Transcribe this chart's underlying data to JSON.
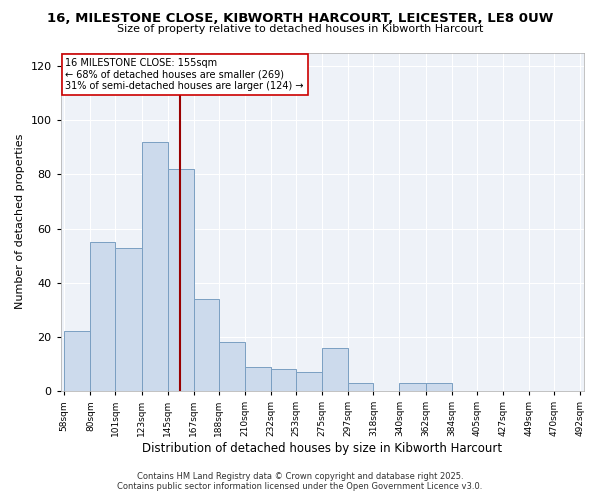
{
  "title": "16, MILESTONE CLOSE, KIBWORTH HARCOURT, LEICESTER, LE8 0UW",
  "subtitle": "Size of property relative to detached houses in Kibworth Harcourt",
  "xlabel": "Distribution of detached houses by size in Kibworth Harcourt",
  "ylabel": "Number of detached properties",
  "bar_color": "#ccdaec",
  "bar_edge_color": "#7a9fc2",
  "background_color": "#eef2f8",
  "grid_color": "#ffffff",
  "vline_x": 155,
  "vline_color": "#990000",
  "annotation_line1": "16 MILESTONE CLOSE: 155sqm",
  "annotation_line2": "← 68% of detached houses are smaller (269)",
  "annotation_line3": "31% of semi-detached houses are larger (124) →",
  "annotation_box_color": "#cc0000",
  "footer_line1": "Contains HM Land Registry data © Crown copyright and database right 2025.",
  "footer_line2": "Contains public sector information licensed under the Open Government Licence v3.0.",
  "bin_labels": [
    "58sqm",
    "80sqm",
    "101sqm",
    "123sqm",
    "145sqm",
    "167sqm",
    "188sqm",
    "210sqm",
    "232sqm",
    "253sqm",
    "275sqm",
    "297sqm",
    "318sqm",
    "340sqm",
    "362sqm",
    "384sqm",
    "405sqm",
    "427sqm",
    "449sqm",
    "470sqm",
    "492sqm"
  ],
  "bin_edges": [
    58,
    80,
    101,
    123,
    145,
    167,
    188,
    210,
    232,
    253,
    275,
    297,
    318,
    340,
    362,
    384,
    405,
    427,
    449,
    470,
    492
  ],
  "bar_heights": [
    22,
    55,
    53,
    92,
    82,
    34,
    18,
    9,
    8,
    7,
    16,
    3,
    0,
    3,
    3,
    0,
    0,
    0,
    0,
    0
  ],
  "ylim": [
    0,
    125
  ],
  "yticks": [
    0,
    20,
    40,
    60,
    80,
    100,
    120
  ]
}
